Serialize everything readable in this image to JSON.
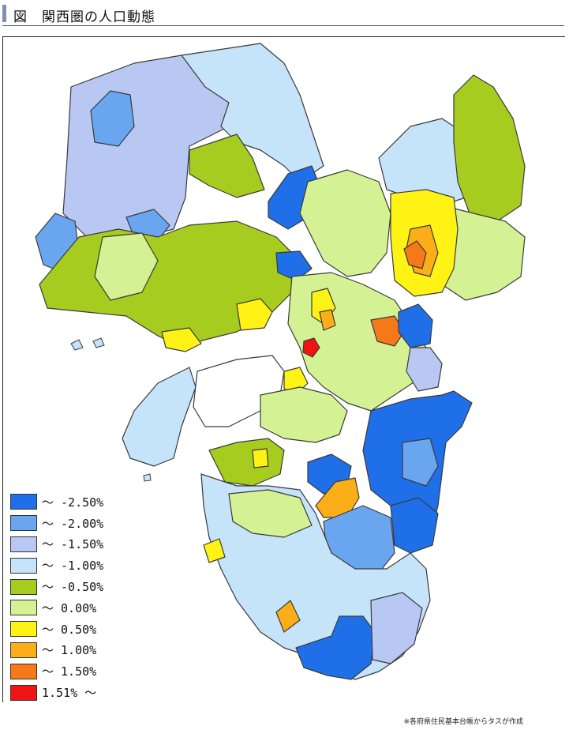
{
  "title": "図　関西圏の人口動態",
  "source_note": "※各府県住民基本台帳からタスが作成",
  "colors": {
    "c1": "#1f6fe8",
    "c2": "#6aa6ef",
    "c3": "#b8c8f2",
    "c4": "#c5e3f9",
    "c5": "#a5cc1e",
    "c6": "#d4f294",
    "c7": "#fff215",
    "c8": "#fbae18",
    "c9": "#f57919",
    "c10": "#f01414",
    "sea": "#ffffff",
    "border": "#3a3a3a"
  },
  "legend": [
    {
      "label": "～ -2.50%",
      "color": "#1f6fe8"
    },
    {
      "label": "～ -2.00%",
      "color": "#6aa6ef"
    },
    {
      "label": "～ -1.50%",
      "color": "#b8c8f2"
    },
    {
      "label": "～ -1.00%",
      "color": "#c5e3f9"
    },
    {
      "label": "～ -0.50%",
      "color": "#a5cc1e"
    },
    {
      "label": "～ 0.00%",
      "color": "#d4f294"
    },
    {
      "label": "～ 0.50%",
      "color": "#fff215"
    },
    {
      "label": "～ 1.00%",
      "color": "#fbae18"
    },
    {
      "label": "～ 1.50%",
      "color": "#f57919"
    },
    {
      "label": "1.51% ～",
      "color": "#f01414"
    }
  ]
}
